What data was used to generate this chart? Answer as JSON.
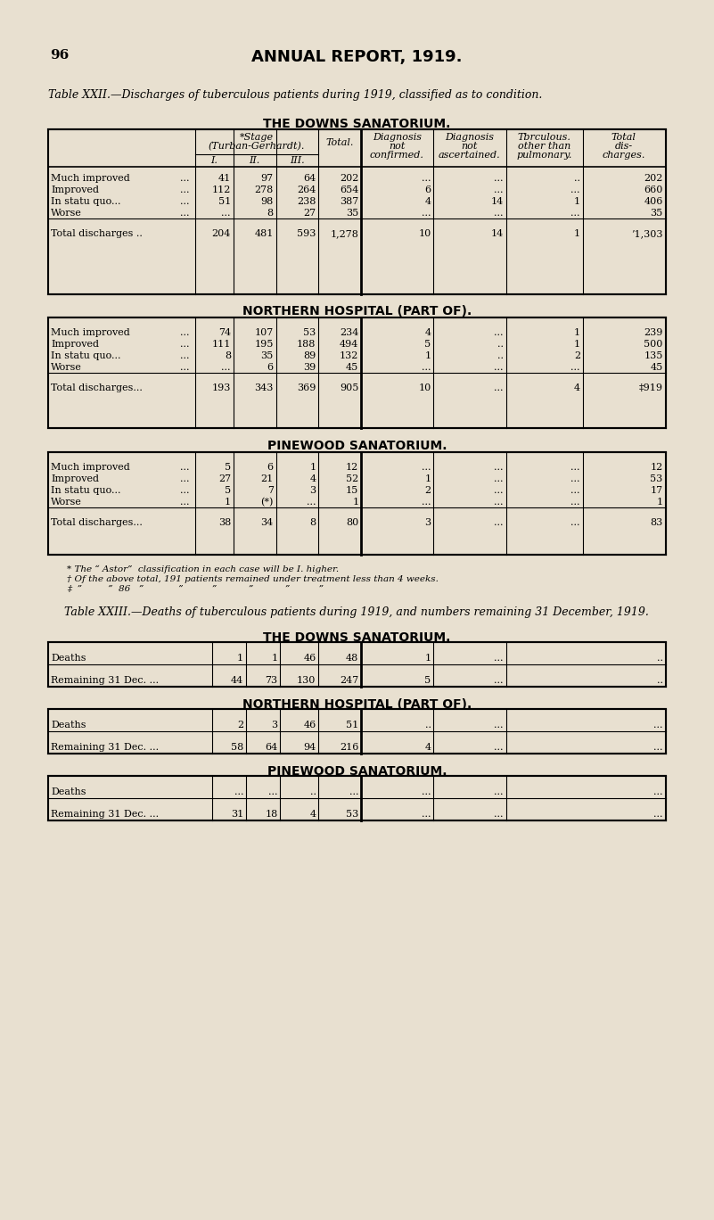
{
  "bg_color": "#e8e0d0",
  "page_num": "96",
  "page_title": "ANNUAL REPORT, 1919.",
  "table22_caption": "Table XXII.—Discharges of tuberculous patients during 1919, classified as to condition.",
  "table23_caption": "Table XXIII.—Deaths of tuberculous patients during 1919, and numbers remaining 31 December, 1919.",
  "section1_title": "THE DOWNS SANATORIUM.",
  "section2_title": "NORTHERN HOSPITAL (PART OF).",
  "section3_title": "PINEWOOD SANATORIUM.",
  "section4_title": "THE DOWNS SANATORIUM.",
  "section5_title": "NORTHERN HOSPITAL (PART OF).",
  "section6_title": "PINEWOOD SANATORIUM.",
  "col_headers": [
    "*Stage\n(Turban-Gerhardt).",
    "Total.",
    "Diagnosis\nnot\nconfirmed.",
    "Diagnosis\nnot\nascertained.",
    "Tbrculous.\nother than\npulmonary.",
    "Total\ndis-\ncharges."
  ],
  "sub_headers": [
    "I.",
    "II.",
    "III."
  ],
  "footnote1": "* The “ Astor”  classification in each case will be I. higher.",
  "footnote2": "† Of the above total, 191 patients remained under treatment less than 4 weeks.",
  "footnote3": "‡  ”         ”  86   ”            ”          ”           ”           ”          ”",
  "downs_rows": [
    [
      "Much improved",
      "...",
      "41",
      "97",
      "64",
      "202",
      "...",
      "...",
      "..",
      "202"
    ],
    [
      "Improved",
      "...",
      "112",
      "278",
      "264",
      "654",
      "6",
      "...",
      "...",
      "660"
    ],
    [
      "In statu quo...",
      "...",
      "51",
      "98",
      "238",
      "387",
      "4",
      "14",
      "1",
      "406"
    ],
    [
      "Worse",
      "...",
      "...",
      "8",
      "27",
      "35",
      "...",
      "...",
      "...",
      "35"
    ]
  ],
  "downs_total": [
    "Total discharges ..",
    "204",
    "481",
    "593",
    "1,278",
    "10",
    "14",
    "1",
    "’1,303"
  ],
  "northern_rows": [
    [
      "Much improved",
      "...",
      "74",
      "107",
      "53",
      "234",
      "4",
      "...",
      "1",
      "239"
    ],
    [
      "Improved",
      "...",
      "111",
      "195",
      "188",
      "494",
      "5",
      "..",
      "1",
      "500"
    ],
    [
      "In statu quo...",
      "...",
      "8",
      "35",
      "89",
      "132",
      "1",
      "..",
      "2",
      "135"
    ],
    [
      "Worse",
      "...",
      "...",
      "6",
      "39",
      "45",
      "...",
      "...",
      "...",
      "45"
    ]
  ],
  "northern_total": [
    "Total discharges...",
    "193",
    "343",
    "369",
    "905",
    "10",
    "...",
    "4",
    "‡919"
  ],
  "pinewood_rows": [
    [
      "Much improved",
      "...",
      "5",
      "6",
      "1",
      "12",
      "...",
      "...",
      "...",
      "12"
    ],
    [
      "Improved",
      "...",
      "27",
      "21",
      "4",
      "52",
      "1",
      "...",
      "...",
      "53"
    ],
    [
      "In statu quo...",
      "...",
      "5",
      "7",
      "3",
      "15",
      "2",
      "...",
      "...",
      "17"
    ],
    [
      "Worse",
      "...",
      "1",
      "(*)",
      "...",
      "1",
      "...",
      "...",
      "...",
      "1"
    ]
  ],
  "pinewood_total": [
    "Total discharges...",
    "38",
    "34",
    "8",
    "80",
    "3",
    "...",
    "...",
    "83"
  ],
  "downs_deaths": [
    [
      "Deaths",
      "1",
      "1",
      "46",
      "48",
      "1",
      "...",
      ".."
    ],
    [
      "Remaining 31 Dec. ...",
      "44",
      "73",
      "130",
      "247",
      "5",
      "...",
      ".."
    ]
  ],
  "northern_deaths": [
    [
      "Deaths",
      "2",
      "3",
      "46",
      "51",
      "..",
      "...",
      "..."
    ],
    [
      "Remaining 31 Dec. ...",
      "58",
      "64",
      "94",
      "216",
      "4",
      "...",
      "..."
    ]
  ],
  "pinewood_deaths": [
    [
      "Deaths",
      "...",
      "...",
      "..",
      "...",
      "...",
      "...",
      "..."
    ],
    [
      "Remaining 31 Dec. ...",
      "31",
      "18",
      "4",
      "53",
      "...",
      "...",
      "..."
    ]
  ]
}
